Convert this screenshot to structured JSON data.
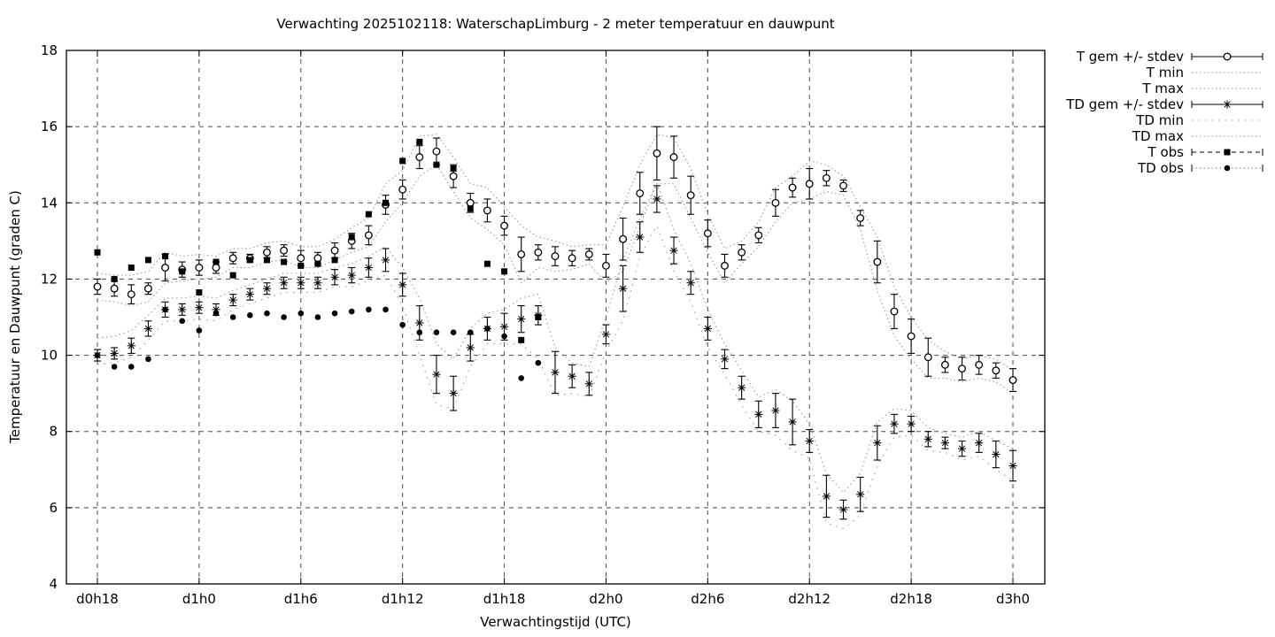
{
  "title": "Verwachting 2025102118: WaterschapLimburg - 2 meter temperatuur en dauwpunt",
  "colors": {
    "foreground": "#000000",
    "envelope": "#9a9a9a",
    "background": "#ffffff"
  },
  "axes": {
    "y_label": "Temperatuur en Dauwpunt (graden C)",
    "x_label": "Verwachtingstijd (UTC)",
    "y_ticks": [
      4,
      6,
      8,
      10,
      12,
      14,
      16,
      18
    ],
    "y_range": [
      4,
      18
    ],
    "x_major": [
      {
        "i": 0,
        "label": "d0h18"
      },
      {
        "i": 6,
        "label": "d1h0"
      },
      {
        "i": 12,
        "label": "d1h6"
      },
      {
        "i": 18,
        "label": "d1h12"
      },
      {
        "i": 24,
        "label": "d1h18"
      },
      {
        "i": 30,
        "label": "d2h0"
      },
      {
        "i": 36,
        "label": "d2h6"
      },
      {
        "i": 42,
        "label": "d2h12"
      },
      {
        "i": 48,
        "label": "d2h18"
      },
      {
        "i": 54,
        "label": "d3h0"
      }
    ]
  },
  "legend": [
    {
      "label": "T gem +/- stdev",
      "sample": "errorbar-circle"
    },
    {
      "label": "T min",
      "sample": "dots"
    },
    {
      "label": "T max",
      "sample": "dots"
    },
    {
      "label": "TD gem +/- stdev",
      "sample": "errorbar-asterisk"
    },
    {
      "label": "TD min",
      "sample": "dots-sparse"
    },
    {
      "label": "TD max",
      "sample": "dots"
    },
    {
      "label": "T obs",
      "sample": "dash-square"
    },
    {
      "label": "TD obs",
      "sample": "dots-dot"
    }
  ],
  "chart_data": {
    "type": "line",
    "title": "Verwachting 2025102118: WaterschapLimburg - 2 meter temperatuur en dauwpunt",
    "xlabel": "Verwachtingstijd (UTC)",
    "ylabel": "Temperatuur en Dauwpunt (graden C)",
    "ylim": [
      4,
      18
    ],
    "grid": true,
    "legend_position": "outside-top-right",
    "x_labels": [
      "d0h18",
      "d0h19",
      "d0h20",
      "d0h21",
      "d0h22",
      "d0h23",
      "d1h0",
      "d1h1",
      "d1h2",
      "d1h3",
      "d1h4",
      "d1h5",
      "d1h6",
      "d1h7",
      "d1h8",
      "d1h9",
      "d1h10",
      "d1h11",
      "d1h12",
      "d1h13",
      "d1h14",
      "d1h15",
      "d1h16",
      "d1h17",
      "d1h18",
      "d1h19",
      "d1h20",
      "d1h21",
      "d1h22",
      "d1h23",
      "d2h0",
      "d2h1",
      "d2h2",
      "d2h3",
      "d2h4",
      "d2h5",
      "d2h6",
      "d2h7",
      "d2h8",
      "d2h9",
      "d2h10",
      "d2h11",
      "d2h12",
      "d2h13",
      "d2h14",
      "d2h15",
      "d2h16",
      "d2h17",
      "d2h18",
      "d2h19",
      "d2h20",
      "d2h21",
      "d2h22",
      "d2h23",
      "d3h0"
    ],
    "series": [
      {
        "name": "T min",
        "key": "t_min",
        "style": "dots",
        "dash": "1.5,3",
        "values": [
          11.45,
          11.4,
          11.3,
          11.4,
          11.9,
          11.95,
          12.0,
          12.05,
          12.3,
          12.3,
          12.45,
          12.5,
          12.3,
          12.3,
          12.5,
          12.7,
          12.85,
          13.5,
          14.0,
          14.7,
          15.0,
          14.3,
          13.6,
          13.3,
          12.9,
          11.9,
          12.3,
          12.2,
          12.25,
          12.4,
          11.9,
          12.2,
          13.4,
          14.5,
          14.5,
          13.6,
          12.7,
          11.9,
          12.4,
          12.85,
          13.5,
          14.0,
          14.1,
          14.3,
          14.2,
          13.3,
          11.7,
          10.5,
          9.9,
          9.4,
          9.4,
          9.3,
          9.4,
          9.3,
          9.0
        ]
      },
      {
        "name": "T max",
        "key": "t_max",
        "style": "dots",
        "dash": "1.5,3",
        "values": [
          12.15,
          12.1,
          12.1,
          12.2,
          12.7,
          12.6,
          12.65,
          12.6,
          12.8,
          12.8,
          12.95,
          13.0,
          12.85,
          12.85,
          13.05,
          13.35,
          13.6,
          14.5,
          14.85,
          15.75,
          15.8,
          15.2,
          14.5,
          14.4,
          13.9,
          13.4,
          13.1,
          13.0,
          12.85,
          12.9,
          12.9,
          13.9,
          15.0,
          15.8,
          15.7,
          14.9,
          13.7,
          12.8,
          13.0,
          13.5,
          14.4,
          14.7,
          15.1,
          15.0,
          14.7,
          13.9,
          13.1,
          11.8,
          11.0,
          10.4,
          10.1,
          9.9,
          10.0,
          9.9,
          9.6
        ]
      },
      {
        "name": "TD min",
        "key": "td_min",
        "style": "dots",
        "dash": "1.5,6",
        "values": [
          9.75,
          9.8,
          9.95,
          10.4,
          10.9,
          10.9,
          10.95,
          10.9,
          11.2,
          11.35,
          11.5,
          11.65,
          11.65,
          11.65,
          11.8,
          11.8,
          11.95,
          12.1,
          11.3,
          10.0,
          8.7,
          8.6,
          9.7,
          10.3,
          10.3,
          10.3,
          9.9,
          8.95,
          9.0,
          8.9,
          10.1,
          10.9,
          12.6,
          13.4,
          12.2,
          11.4,
          10.2,
          9.5,
          8.7,
          8.0,
          7.9,
          7.5,
          7.3,
          5.6,
          5.45,
          5.8,
          7.1,
          7.85,
          7.9,
          7.5,
          7.45,
          7.25,
          7.35,
          7.0,
          6.7
        ]
      },
      {
        "name": "TD max",
        "key": "td_max",
        "style": "dots",
        "dash": "1.5,3.5",
        "values": [
          10.45,
          10.5,
          10.65,
          11.05,
          11.5,
          11.5,
          11.55,
          11.5,
          11.7,
          11.85,
          12.0,
          12.15,
          12.15,
          12.15,
          12.3,
          12.4,
          12.6,
          12.85,
          12.3,
          11.5,
          10.3,
          9.9,
          10.7,
          11.1,
          11.2,
          11.5,
          11.6,
          10.2,
          9.8,
          9.7,
          11.0,
          12.5,
          13.6,
          14.5,
          13.3,
          12.4,
          11.2,
          10.3,
          9.6,
          8.9,
          9.1,
          8.8,
          8.2,
          6.9,
          6.4,
          6.9,
          8.25,
          8.6,
          8.55,
          8.1,
          7.95,
          7.85,
          8.0,
          7.75,
          7.55
        ]
      },
      {
        "name": "T gem +/- stdev",
        "key": "t_gem",
        "style": "errorbar",
        "marker": "circle-open",
        "values": [
          11.8,
          11.75,
          11.6,
          11.75,
          12.3,
          12.25,
          12.3,
          12.3,
          12.55,
          12.55,
          12.7,
          12.75,
          12.55,
          12.55,
          12.75,
          13.0,
          13.15,
          13.95,
          14.35,
          15.2,
          15.35,
          14.7,
          14.0,
          13.8,
          13.4,
          12.65,
          12.7,
          12.6,
          12.55,
          12.65,
          12.35,
          13.05,
          14.25,
          15.3,
          15.2,
          14.2,
          13.2,
          12.35,
          12.7,
          13.15,
          14.0,
          14.4,
          14.5,
          14.65,
          14.45,
          13.6,
          12.45,
          11.15,
          10.5,
          9.95,
          9.75,
          9.65,
          9.75,
          9.6,
          9.35
        ],
        "stdev": [
          0.2,
          0.2,
          0.25,
          0.15,
          0.35,
          0.2,
          0.2,
          0.15,
          0.15,
          0.1,
          0.15,
          0.15,
          0.2,
          0.15,
          0.2,
          0.2,
          0.25,
          0.25,
          0.25,
          0.3,
          0.35,
          0.3,
          0.25,
          0.3,
          0.25,
          0.45,
          0.2,
          0.25,
          0.2,
          0.15,
          0.3,
          0.55,
          0.55,
          0.7,
          0.55,
          0.5,
          0.35,
          0.3,
          0.2,
          0.2,
          0.35,
          0.25,
          0.4,
          0.2,
          0.15,
          0.2,
          0.55,
          0.45,
          0.45,
          0.5,
          0.2,
          0.3,
          0.25,
          0.2,
          0.3
        ]
      },
      {
        "name": "TD gem +/- stdev",
        "key": "td_gem",
        "style": "errorbar",
        "marker": "asterisk",
        "values": [
          10.0,
          10.05,
          10.25,
          10.7,
          11.2,
          11.2,
          11.25,
          11.2,
          11.45,
          11.6,
          11.75,
          11.9,
          11.9,
          11.9,
          12.05,
          12.1,
          12.3,
          12.5,
          11.85,
          10.85,
          9.5,
          9.0,
          10.2,
          10.7,
          10.75,
          10.95,
          11.05,
          9.55,
          9.45,
          9.25,
          10.55,
          11.75,
          13.1,
          14.1,
          12.75,
          11.9,
          10.7,
          9.9,
          9.15,
          8.45,
          8.55,
          8.25,
          7.75,
          6.3,
          5.95,
          6.35,
          7.7,
          8.2,
          8.2,
          7.8,
          7.7,
          7.55,
          7.7,
          7.4,
          7.1
        ],
        "stdev": [
          0.15,
          0.15,
          0.2,
          0.2,
          0.2,
          0.15,
          0.15,
          0.15,
          0.15,
          0.15,
          0.15,
          0.15,
          0.15,
          0.15,
          0.2,
          0.2,
          0.25,
          0.3,
          0.3,
          0.45,
          0.5,
          0.45,
          0.35,
          0.3,
          0.35,
          0.35,
          0.25,
          0.55,
          0.3,
          0.3,
          0.25,
          0.6,
          0.4,
          0.35,
          0.35,
          0.3,
          0.3,
          0.25,
          0.3,
          0.35,
          0.45,
          0.6,
          0.3,
          0.55,
          0.25,
          0.45,
          0.45,
          0.25,
          0.2,
          0.2,
          0.15,
          0.2,
          0.25,
          0.35,
          0.4
        ]
      },
      {
        "name": "T obs",
        "key": "t_obs",
        "style": "markers",
        "marker": "square-filled",
        "values": [
          12.7,
          12.0,
          12.3,
          12.5,
          12.6,
          12.2,
          11.65,
          12.45,
          12.1,
          12.5,
          12.5,
          12.45,
          12.35,
          12.4,
          12.5,
          13.1,
          13.7,
          14.0,
          15.1,
          15.6,
          15.0,
          14.9,
          13.85,
          12.4,
          12.2,
          10.4,
          11.0
        ]
      },
      {
        "name": "TD obs",
        "key": "td_obs",
        "style": "markers",
        "marker": "circle-filled",
        "values": [
          10.0,
          9.7,
          9.7,
          9.9,
          11.2,
          10.9,
          10.65,
          11.1,
          11.0,
          11.05,
          11.1,
          11.0,
          11.1,
          11.0,
          11.1,
          11.15,
          11.2,
          11.2,
          10.8,
          10.6,
          10.6,
          10.6,
          10.6,
          10.7,
          10.5,
          9.4,
          9.8
        ]
      }
    ]
  }
}
